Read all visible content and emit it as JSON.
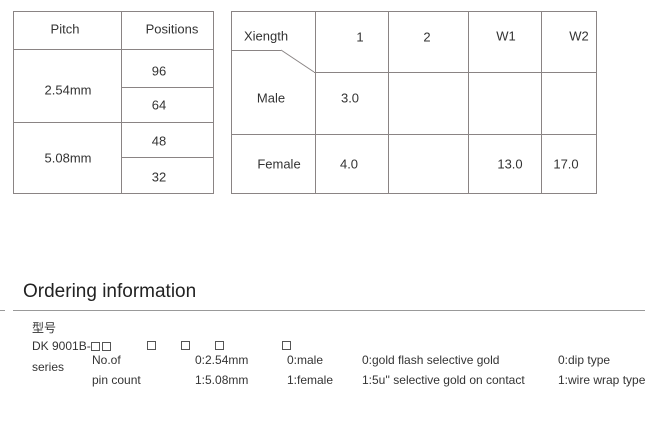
{
  "pitch_table": {
    "headers": [
      "Pitch",
      "Positions"
    ],
    "rows": [
      {
        "pitch": "2.54mm",
        "positions": [
          "96",
          "64"
        ]
      },
      {
        "pitch": "5.08mm",
        "positions": [
          "48",
          "32"
        ]
      }
    ]
  },
  "length_table": {
    "headers": [
      "Xiength",
      "1",
      "2",
      "W1",
      "W2"
    ],
    "rows": [
      {
        "label": "Male",
        "values": [
          "3.0",
          "",
          "",
          ""
        ]
      },
      {
        "label": "Female",
        "values": [
          "4.0",
          "",
          "13.0",
          "17.0"
        ]
      }
    ]
  },
  "ordering": {
    "title": "Ordering information",
    "model_label": "型号",
    "model_prefix": "DK 9001B-",
    "series": "series",
    "pin_count": [
      "No.of",
      "pin count"
    ],
    "pitch_options": [
      "0:2.54mm",
      "1:5.08mm"
    ],
    "gender_options": [
      "0:male",
      "1:female"
    ],
    "plating_options": [
      "0:gold flash selective gold",
      "1:5u'' selective gold on contact"
    ],
    "type_options": [
      "0:dip type",
      "1:wire wrap type"
    ]
  }
}
